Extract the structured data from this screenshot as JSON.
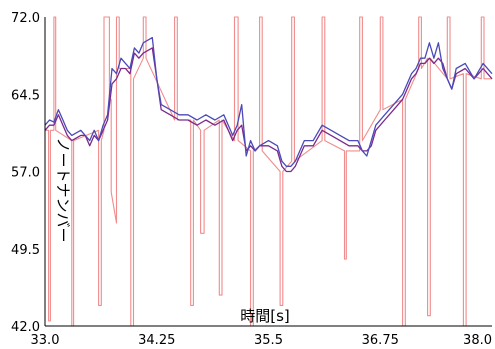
{
  "chart_data": {
    "type": "line",
    "title": "",
    "xlabel": "時間[s]",
    "ylabel": "ノートナンバー",
    "xlim": [
      33.0,
      38.0
    ],
    "ylim": [
      42.0,
      72.0
    ],
    "x_ticks": [
      "33.0",
      "34.25",
      "35.5",
      "36.75",
      "38.0"
    ],
    "y_ticks": [
      "72.0",
      "64.5",
      "57.0",
      "49.5",
      "42.0"
    ],
    "grid": "none",
    "colors": {
      "blue": "#4a4ab8",
      "purple": "#7a2a8c",
      "pink": "#f08c8c"
    },
    "series": [
      {
        "color": "blue",
        "x": [
          33.0,
          33.05,
          33.1,
          33.15,
          33.2,
          33.25,
          33.3,
          33.4,
          33.45,
          33.5,
          33.55,
          33.6,
          33.65,
          33.7,
          33.75,
          33.8,
          33.85,
          33.9,
          33.95,
          34.0,
          34.05,
          34.1,
          34.2,
          34.25,
          34.3,
          34.4,
          34.5,
          34.6,
          34.7,
          34.8,
          34.9,
          35.0,
          35.05,
          35.1,
          35.15,
          35.2,
          35.25,
          35.3,
          35.35,
          35.4,
          35.5,
          35.6,
          35.65,
          35.7,
          35.75,
          35.8,
          35.9,
          36.0,
          36.1,
          36.2,
          36.3,
          36.4,
          36.5,
          36.55,
          36.6,
          36.65,
          36.7,
          36.8,
          36.9,
          37.0,
          37.05,
          37.1,
          37.15,
          37.2,
          37.25,
          37.3,
          37.35,
          37.4,
          37.45,
          37.5,
          37.55,
          37.6,
          37.7,
          37.8,
          37.9,
          38.0
        ],
        "y": [
          61.5,
          62.0,
          61.8,
          63.0,
          62.0,
          61.0,
          60.5,
          61.0,
          60.5,
          60.0,
          61.0,
          60.0,
          61.5,
          62.5,
          67.0,
          66.5,
          68.0,
          67.5,
          67.0,
          69.0,
          68.5,
          69.5,
          70.0,
          66.0,
          63.5,
          63.0,
          62.5,
          62.5,
          62.0,
          62.5,
          62.0,
          62.5,
          61.5,
          60.5,
          61.5,
          63.5,
          58.5,
          60.0,
          59.0,
          59.5,
          60.0,
          59.5,
          58.0,
          57.5,
          57.5,
          58.0,
          60.0,
          60.0,
          61.5,
          61.0,
          60.5,
          60.0,
          60.0,
          59.0,
          58.5,
          60.0,
          61.5,
          62.5,
          63.5,
          64.5,
          65.5,
          66.5,
          67.0,
          68.0,
          68.0,
          69.5,
          68.0,
          69.5,
          67.0,
          66.0,
          65.0,
          67.0,
          67.5,
          66.0,
          67.5,
          66.5
        ]
      },
      {
        "color": "purple",
        "x": [
          33.0,
          33.05,
          33.1,
          33.15,
          33.2,
          33.25,
          33.3,
          33.4,
          33.45,
          33.5,
          33.55,
          33.6,
          33.65,
          33.7,
          33.75,
          33.8,
          33.85,
          33.9,
          33.95,
          34.0,
          34.05,
          34.1,
          34.2,
          34.25,
          34.3,
          34.4,
          34.5,
          34.6,
          34.7,
          34.8,
          34.9,
          35.0,
          35.05,
          35.1,
          35.15,
          35.2,
          35.25,
          35.3,
          35.35,
          35.4,
          35.5,
          35.6,
          35.65,
          35.7,
          35.75,
          35.8,
          35.9,
          36.0,
          36.1,
          36.2,
          36.3,
          36.4,
          36.5,
          36.55,
          36.6,
          36.65,
          36.7,
          36.8,
          36.9,
          37.0,
          37.05,
          37.1,
          37.15,
          37.2,
          37.25,
          37.3,
          37.35,
          37.4,
          37.45,
          37.5,
          37.55,
          37.6,
          37.7,
          37.8,
          37.9,
          38.0
        ],
        "y": [
          61.0,
          61.5,
          61.5,
          62.5,
          61.5,
          60.5,
          60.0,
          60.5,
          60.5,
          59.5,
          60.5,
          60.0,
          61.0,
          62.0,
          65.5,
          66.0,
          67.0,
          67.0,
          66.5,
          68.5,
          68.0,
          68.5,
          69.0,
          66.0,
          63.0,
          62.5,
          62.0,
          62.0,
          61.5,
          62.0,
          61.5,
          62.0,
          61.0,
          60.0,
          61.0,
          61.5,
          59.0,
          59.5,
          59.0,
          59.5,
          59.5,
          59.0,
          57.5,
          57.0,
          57.0,
          57.5,
          59.5,
          59.5,
          61.0,
          60.5,
          60.0,
          59.5,
          59.5,
          59.0,
          59.0,
          59.5,
          61.0,
          62.0,
          63.0,
          64.0,
          65.0,
          66.0,
          66.5,
          67.5,
          67.5,
          68.0,
          67.5,
          68.0,
          67.5,
          66.0,
          65.0,
          66.5,
          67.0,
          66.0,
          67.0,
          66.0
        ]
      },
      {
        "color": "pink",
        "x": [
          33.0,
          33.04,
          33.04,
          33.06,
          33.06,
          33.1,
          33.1,
          33.12,
          33.12,
          33.3,
          33.3,
          33.32,
          33.32,
          33.6,
          33.6,
          33.63,
          33.63,
          33.66,
          33.66,
          33.72,
          33.72,
          33.74,
          33.74,
          33.8,
          33.8,
          33.83,
          33.83,
          33.96,
          33.96,
          33.99,
          33.99,
          34.1,
          34.1,
          34.13,
          34.13,
          34.45,
          34.45,
          34.48,
          34.48,
          34.63,
          34.63,
          34.66,
          34.66,
          34.74,
          34.74,
          34.78,
          34.78,
          34.95,
          34.95,
          34.98,
          34.98,
          35.12,
          35.12,
          35.16,
          35.16,
          35.3,
          35.3,
          35.33,
          35.33,
          35.4,
          35.4,
          35.43,
          35.43,
          35.63,
          35.63,
          35.66,
          35.66,
          35.76,
          35.76,
          35.79,
          35.79,
          36.1,
          36.1,
          36.13,
          36.13,
          36.35,
          36.35,
          36.37,
          36.37,
          36.52,
          36.52,
          36.55,
          36.55,
          36.75,
          36.75,
          36.78,
          36.78,
          37.0,
          37.0,
          37.03,
          37.03,
          37.18,
          37.18,
          37.21,
          37.21,
          37.28,
          37.28,
          37.31,
          37.31,
          37.5,
          37.5,
          37.53,
          37.53,
          37.68,
          37.68,
          37.71,
          37.71,
          37.88,
          37.88,
          37.91,
          37.91,
          38.0
        ],
        "y": [
          61.0,
          61.0,
          42.5,
          42.5,
          61.0,
          61.0,
          72.0,
          72.0,
          61.0,
          60.0,
          42.0,
          42.0,
          60.0,
          61.0,
          44.0,
          44.0,
          60.0,
          61.0,
          72.0,
          72.0,
          64.0,
          64.0,
          55.0,
          52.0,
          72.0,
          72.0,
          67.0,
          67.0,
          42.0,
          42.0,
          66.0,
          68.0,
          72.0,
          72.0,
          68.0,
          62.0,
          72.0,
          72.0,
          62.0,
          62.0,
          44.0,
          44.0,
          62.0,
          61.0,
          51.0,
          51.0,
          61.0,
          62.0,
          45.0,
          45.0,
          62.0,
          60.0,
          72.0,
          72.0,
          60.0,
          59.0,
          42.0,
          42.0,
          59.0,
          59.5,
          72.0,
          72.0,
          59.0,
          57.0,
          44.0,
          44.0,
          57.0,
          58.0,
          72.0,
          72.0,
          58.0,
          60.0,
          72.0,
          72.0,
          60.0,
          59.0,
          48.5,
          48.5,
          59.0,
          59.0,
          72.0,
          72.0,
          60.0,
          63.0,
          72.0,
          72.0,
          63.0,
          64.0,
          42.0,
          42.0,
          64.0,
          67.0,
          72.0,
          72.0,
          67.0,
          68.0,
          43.0,
          43.0,
          68.0,
          66.0,
          72.0,
          72.0,
          66.0,
          66.5,
          42.0,
          42.0,
          66.5,
          66.0,
          72.0,
          72.0,
          66.0,
          66.0
        ]
      }
    ]
  }
}
